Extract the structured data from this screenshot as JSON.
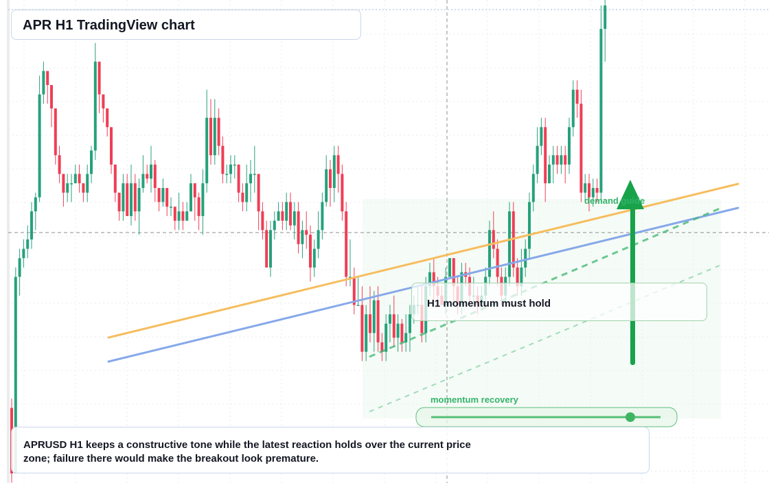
{
  "title": "APR H1 TradingView chart",
  "labels": {
    "demand": "demand guide",
    "recovery": "momentum recovery",
    "momentum": "H1 momentum must hold"
  },
  "summary": "APRUSD H1 keeps a constructive tone while the latest reaction holds over the current price zone; failure there would make the breakout look premature.",
  "colors": {
    "up": "#26a17b",
    "down": "#ef3e55",
    "orange_line": "#f6bd5e",
    "blue_line": "#86a8ea",
    "accent_green": "#18a34a",
    "zone_fill": "#e8f6ea"
  },
  "chart_data": {
    "type": "candlestick",
    "grid": true,
    "yrange": [
      0,
      100
    ],
    "candles": [
      [
        14.0,
        0.0,
        16.0,
        -2.0
      ],
      [
        0.0,
        42.0,
        44.0,
        0.0
      ],
      [
        42.0,
        46.0,
        48.0,
        38.0
      ],
      [
        46.0,
        48.0,
        50.0,
        44.0
      ],
      [
        48.0,
        50.0,
        53.0,
        46.0
      ],
      [
        50.0,
        56.0,
        58.0,
        48.0
      ],
      [
        56.0,
        59.0,
        60.0,
        52.0
      ],
      [
        59.0,
        81.0,
        85.0,
        58.0
      ],
      [
        81.0,
        86.0,
        88.0,
        79.0
      ],
      [
        86.0,
        83.0,
        86.0,
        79.0
      ],
      [
        83.0,
        78.0,
        81.0,
        74.0
      ],
      [
        78.0,
        68.0,
        76.0,
        66.0
      ],
      [
        68.0,
        64.0,
        70.0,
        62.0
      ],
      [
        64.0,
        60.0,
        62.0,
        57.0
      ],
      [
        60.0,
        62.0,
        64.0,
        58.0
      ],
      [
        62.0,
        62.0,
        64.0,
        58.0
      ],
      [
        62.0,
        64.0,
        66.0,
        62.0
      ],
      [
        64.0,
        62.0,
        66.0,
        60.0
      ],
      [
        62.0,
        60.0,
        62.0,
        58.0
      ],
      [
        60.0,
        64.0,
        66.0,
        58.0
      ],
      [
        64.0,
        69.0,
        70.0,
        62.0
      ],
      [
        69.0,
        88.0,
        92.0,
        67.0
      ],
      [
        88.0,
        81.0,
        86.0,
        77.0
      ],
      [
        81.0,
        78.0,
        79.0,
        75.0
      ],
      [
        78.0,
        74.0,
        78.0,
        72.0
      ],
      [
        74.0,
        66.0,
        70.0,
        64.0
      ],
      [
        66.0,
        60.0,
        66.0,
        58.0
      ],
      [
        60.0,
        56.0,
        58.0,
        54.0
      ],
      [
        56.0,
        62.0,
        64.0,
        54.0
      ],
      [
        62.0,
        55.0,
        64.0,
        55.0
      ],
      [
        55.0,
        62.0,
        66.0,
        53.0
      ],
      [
        62.0,
        56.0,
        64.0,
        54.0
      ],
      [
        56.0,
        61.0,
        63.0,
        51.0
      ],
      [
        61.0,
        64.0,
        68.0,
        60.0
      ],
      [
        64.0,
        63.0,
        66.0,
        62.0
      ],
      [
        63.0,
        66.0,
        70.0,
        60.0
      ],
      [
        66.0,
        61.0,
        67.0,
        58.0
      ],
      [
        61.0,
        58.0,
        61.0,
        56.0
      ],
      [
        58.0,
        61.0,
        63.0,
        57.0
      ],
      [
        61.0,
        57.0,
        60.0,
        55.0
      ],
      [
        57.0,
        57.0,
        59.0,
        55.0
      ],
      [
        57.0,
        54.0,
        56.0,
        52.0
      ],
      [
        54.0,
        56.0,
        60.0,
        52.0
      ],
      [
        56.0,
        54.0,
        58.0,
        52.0
      ],
      [
        54.0,
        56.0,
        58.0,
        54.0
      ],
      [
        56.0,
        62.0,
        64.0,
        56.0
      ],
      [
        62.0,
        59.0,
        62.0,
        54.0
      ],
      [
        59.0,
        55.0,
        60.0,
        52.0
      ],
      [
        55.0,
        62.0,
        65.0,
        51.0
      ],
      [
        62.0,
        76.0,
        82.0,
        60.0
      ],
      [
        76.0,
        68.0,
        80.0,
        66.0
      ],
      [
        68.0,
        76.0,
        80.0,
        66.0
      ],
      [
        76.0,
        70.0,
        78.0,
        68.0
      ],
      [
        70.0,
        64.0,
        72.0,
        62.0
      ],
      [
        64.0,
        64.0,
        66.0,
        62.0
      ],
      [
        64.0,
        66.0,
        68.0,
        62.0
      ],
      [
        66.0,
        66.0,
        68.0,
        63.0
      ],
      [
        66.0,
        60.0,
        66.0,
        58.0
      ],
      [
        60.0,
        58.0,
        62.0,
        56.0
      ],
      [
        58.0,
        62.0,
        66.0,
        56.0
      ],
      [
        62.0,
        64.0,
        67.0,
        58.0
      ],
      [
        64.0,
        64.0,
        70.0,
        60.0
      ],
      [
        64.0,
        56.0,
        64.0,
        52.0
      ],
      [
        56.0,
        52.0,
        58.0,
        50.0
      ],
      [
        52.0,
        44.0,
        54.0,
        44.0
      ],
      [
        44.0,
        52.0,
        54.0,
        42.0
      ],
      [
        52.0,
        54.0,
        56.0,
        50.0
      ],
      [
        54.0,
        56.0,
        58.0,
        54.0
      ],
      [
        56.0,
        54.0,
        58.0,
        52.0
      ],
      [
        54.0,
        58.0,
        60.0,
        52.0
      ],
      [
        58.0,
        53.0,
        60.0,
        52.0
      ],
      [
        53.0,
        56.0,
        58.0,
        50.0
      ],
      [
        56.0,
        49.0,
        58.0,
        47.0
      ],
      [
        49.0,
        52.0,
        54.0,
        46.0
      ],
      [
        52.0,
        51.0,
        56.0,
        48.0
      ],
      [
        51.0,
        44.0,
        53.0,
        41.0
      ],
      [
        44.0,
        48.0,
        50.0,
        42.0
      ],
      [
        48.0,
        52.0,
        56.0,
        46.0
      ],
      [
        52.0,
        58.0,
        60.0,
        50.0
      ],
      [
        58.0,
        65.0,
        68.0,
        57.0
      ],
      [
        65.0,
        61.0,
        67.0,
        57.0
      ],
      [
        61.0,
        68.0,
        70.0,
        58.0
      ],
      [
        68.0,
        64.0,
        70.0,
        60.0
      ],
      [
        64.0,
        56.0,
        66.0,
        54.0
      ],
      [
        56.0,
        42.0,
        58.0,
        40.0
      ],
      [
        42.0,
        42.0,
        50.0,
        40.0
      ],
      [
        42.0,
        36.0,
        44.0,
        34.0
      ],
      [
        36.0,
        36.0,
        42.0,
        36.0
      ],
      [
        36.0,
        26.0,
        40.0,
        24.0
      ],
      [
        26.0,
        34.0,
        36.0,
        24.0
      ],
      [
        34.0,
        30.0,
        40.0,
        28.0
      ],
      [
        30.0,
        37.0,
        39.0,
        26.0
      ],
      [
        37.0,
        28.0,
        40.0,
        26.0
      ],
      [
        28.0,
        26.0,
        30.0,
        24.0
      ],
      [
        26.0,
        32.0,
        34.0,
        24.0
      ],
      [
        32.0,
        34.0,
        36.0,
        28.0
      ],
      [
        34.0,
        29.0,
        38.0,
        27.0
      ],
      [
        29.0,
        32.0,
        34.0,
        26.0
      ],
      [
        32.0,
        28.0,
        33.0,
        26.0
      ],
      [
        28.0,
        30.0,
        34.0,
        26.0
      ],
      [
        30.0,
        34.0,
        36.0,
        26.0
      ],
      [
        34.0,
        36.0,
        38.0,
        32.0
      ],
      [
        36.0,
        36.0,
        40.0,
        34.0
      ],
      [
        36.0,
        30.0,
        40.0,
        28.0
      ],
      [
        30.0,
        40.0,
        42.0,
        28.0
      ],
      [
        40.0,
        43.0,
        45.0,
        38.0
      ],
      [
        43.0,
        40.0,
        46.0,
        36.0
      ],
      [
        40.0,
        38.0,
        42.0,
        36.0
      ],
      [
        38.0,
        36.0,
        40.0,
        36.0
      ],
      [
        36.0,
        42.0,
        44.0,
        34.0
      ],
      [
        42.0,
        46.0,
        46.0,
        42.0
      ],
      [
        46.0,
        40.0,
        46.0,
        36.0
      ],
      [
        40.0,
        36.0,
        42.0,
        34.0
      ],
      [
        36.0,
        43.0,
        45.0,
        34.0
      ],
      [
        43.0,
        42.0,
        45.0,
        40.0
      ],
      [
        42.0,
        38.0,
        44.0,
        36.0
      ],
      [
        38.0,
        38.0,
        42.0,
        36.0
      ],
      [
        38.0,
        36.0,
        40.0,
        34.0
      ],
      [
        36.0,
        38.0,
        40.0,
        36.0
      ],
      [
        38.0,
        42.0,
        44.0,
        36.0
      ],
      [
        42.0,
        52.0,
        54.0,
        40.0
      ],
      [
        52.0,
        48.0,
        56.0,
        46.0
      ],
      [
        48.0,
        42.0,
        50.0,
        40.0
      ],
      [
        42.0,
        38.0,
        44.0,
        36.0
      ],
      [
        38.0,
        42.0,
        44.0,
        36.0
      ],
      [
        42.0,
        56.0,
        58.0,
        40.0
      ],
      [
        56.0,
        44.0,
        58.0,
        42.0
      ],
      [
        44.0,
        40.0,
        46.0,
        38.0
      ],
      [
        40.0,
        44.0,
        48.0,
        38.0
      ],
      [
        44.0,
        48.0,
        50.0,
        42.0
      ],
      [
        48.0,
        58.0,
        60.0,
        46.0
      ],
      [
        58.0,
        64.0,
        66.0,
        56.0
      ],
      [
        64.0,
        70.0,
        74.0,
        62.0
      ],
      [
        70.0,
        74.0,
        76.0,
        68.0
      ],
      [
        74.0,
        62.0,
        76.0,
        58.0
      ],
      [
        62.0,
        66.0,
        68.0,
        62.0
      ],
      [
        66.0,
        68.0,
        70.0,
        62.0
      ],
      [
        68.0,
        66.0,
        70.0,
        64.0
      ],
      [
        66.0,
        68.0,
        70.0,
        64.0
      ],
      [
        68.0,
        66.0,
        70.0,
        62.0
      ],
      [
        66.0,
        74.0,
        76.0,
        64.0
      ],
      [
        74.0,
        82.0,
        84.0,
        72.0
      ],
      [
        82.0,
        79.0,
        84.0,
        76.0
      ],
      [
        79.0,
        60.0,
        82.0,
        58.0
      ],
      [
        60.0,
        62.0,
        64.0,
        58.0
      ],
      [
        62.0,
        59.0,
        64.0,
        56.0
      ],
      [
        59.0,
        61.0,
        63.0,
        57.0
      ],
      [
        61.0,
        60.0,
        63.0,
        58.0
      ],
      [
        60.0,
        95.0,
        100.0,
        58.0
      ],
      [
        95.0,
        100.0,
        102.0,
        88.0
      ]
    ]
  }
}
